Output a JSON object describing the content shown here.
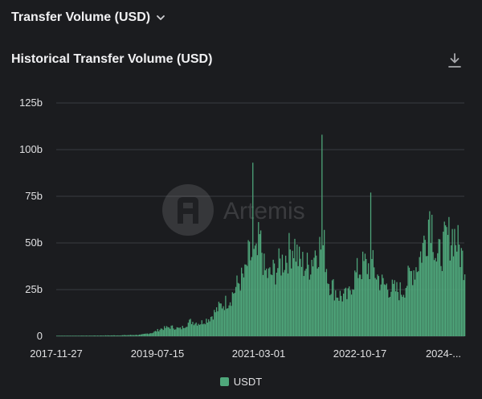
{
  "header": {
    "dropdown_label": "Transfer Volume (USD)",
    "dropdown_icon": "chevron-down-icon",
    "chart_title": "Historical Transfer Volume (USD)",
    "download_icon": "download-icon"
  },
  "watermark": {
    "text": "Artemis"
  },
  "colors": {
    "series": "#4fa77b",
    "background": "#1b1c1f",
    "grid": "#3a3c41"
  },
  "chart_data": {
    "type": "bar",
    "title": "Historical Transfer Volume (USD)",
    "xlabel": "",
    "ylabel": "",
    "ylim": [
      0,
      125
    ],
    "ytick_values": [
      0,
      25,
      50,
      75,
      100,
      125
    ],
    "ytick_labels": [
      "0",
      "25b",
      "50b",
      "75b",
      "100b",
      "125b"
    ],
    "xlim": [
      "2017-11-27",
      "2024-10-21"
    ],
    "xtick_labels": [
      "2017-11-27",
      "2019-07-15",
      "2021-03-01",
      "2022-10-17",
      "2024-..."
    ],
    "grid": true,
    "legend_position": "bottom",
    "series": [
      {
        "name": "USDT",
        "color": "#4fa77b",
        "points": [
          [
            "2017-11-27",
            0.2
          ],
          [
            "2018-06-01",
            0.3
          ],
          [
            "2019-01-01",
            0.5
          ],
          [
            "2019-05-01",
            0.8
          ],
          [
            "2019-07-15",
            2
          ],
          [
            "2019-09-01",
            4
          ],
          [
            "2019-11-01",
            5
          ],
          [
            "2020-01-01",
            4
          ],
          [
            "2020-03-01",
            8
          ],
          [
            "2020-05-01",
            7
          ],
          [
            "2020-07-01",
            10
          ],
          [
            "2020-09-01",
            16
          ],
          [
            "2020-11-01",
            20
          ],
          [
            "2021-01-01",
            30
          ],
          [
            "2021-02-01",
            32
          ],
          [
            "2021-03-01",
            45
          ],
          [
            "2021-03-20",
            93
          ],
          [
            "2021-04-10",
            40
          ],
          [
            "2021-05-01",
            52
          ],
          [
            "2021-05-20",
            45
          ],
          [
            "2021-06-01",
            35
          ],
          [
            "2021-07-01",
            32
          ],
          [
            "2021-09-01",
            38
          ],
          [
            "2021-11-01",
            45
          ],
          [
            "2021-12-01",
            50
          ],
          [
            "2022-01-01",
            40
          ],
          [
            "2022-03-01",
            37
          ],
          [
            "2022-05-01",
            50
          ],
          [
            "2022-05-25",
            108
          ],
          [
            "2022-06-10",
            45
          ],
          [
            "2022-07-01",
            30
          ],
          [
            "2022-09-01",
            22
          ],
          [
            "2022-11-01",
            21
          ],
          [
            "2022-11-20",
            28
          ],
          [
            "2023-01-01",
            35
          ],
          [
            "2023-03-01",
            40
          ],
          [
            "2023-03-20",
            77
          ],
          [
            "2023-04-10",
            35
          ],
          [
            "2023-06-01",
            28
          ],
          [
            "2023-08-01",
            25
          ],
          [
            "2023-10-01",
            24
          ],
          [
            "2023-12-01",
            35
          ],
          [
            "2024-01-01",
            38
          ],
          [
            "2024-03-01",
            55
          ],
          [
            "2024-03-20",
            70
          ],
          [
            "2024-05-01",
            40
          ],
          [
            "2024-07-01",
            52
          ],
          [
            "2024-08-15",
            55
          ],
          [
            "2024-10-21",
            38
          ]
        ]
      }
    ]
  }
}
